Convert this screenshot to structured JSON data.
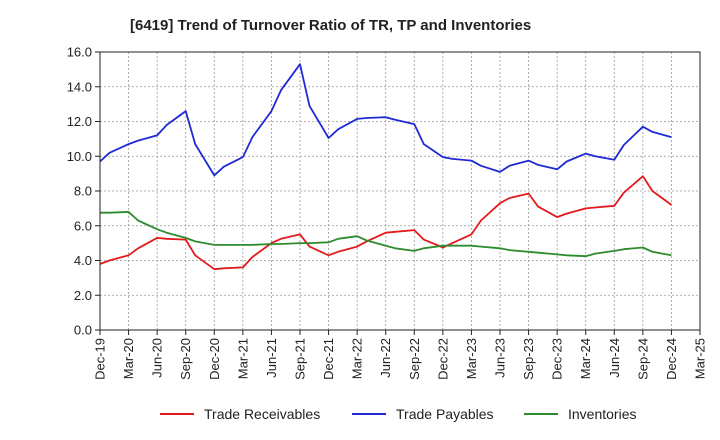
{
  "chart_data": {
    "type": "line",
    "title": "[6419]  Trend of Turnover Ratio of TR, TP and Inventories",
    "xlabel": "",
    "ylabel": "",
    "ylim": [
      0,
      16
    ],
    "y_ticks": [
      "0.0",
      "2.0",
      "4.0",
      "6.0",
      "8.0",
      "10.0",
      "12.0",
      "14.0",
      "16.0"
    ],
    "x_ticks": [
      "Dec-19",
      "Mar-20",
      "Jun-20",
      "Sep-20",
      "Dec-20",
      "Mar-21",
      "Jun-21",
      "Sep-21",
      "Dec-21",
      "Mar-22",
      "Jun-22",
      "Sep-22",
      "Dec-22",
      "Mar-23",
      "Jun-23",
      "Sep-23",
      "Dec-23",
      "Mar-24",
      "Jun-24",
      "Sep-24",
      "Dec-24",
      "Mar-25"
    ],
    "x": [
      "Dec-19",
      "Jan-20",
      "Mar-20",
      "Apr-20",
      "Jun-20",
      "Jul-20",
      "Sep-20",
      "Oct-20",
      "Dec-20",
      "Jan-21",
      "Mar-21",
      "Apr-21",
      "Jun-21",
      "Jul-21",
      "Sep-21",
      "Oct-21",
      "Dec-21",
      "Jan-22",
      "Mar-22",
      "Apr-22",
      "Jun-22",
      "Jul-22",
      "Sep-22",
      "Oct-22",
      "Dec-22",
      "Jan-23",
      "Mar-23",
      "Apr-23",
      "Jun-23",
      "Jul-23",
      "Sep-23",
      "Oct-23",
      "Dec-23",
      "Jan-24",
      "Mar-24",
      "Apr-24",
      "Jun-24",
      "Jul-24",
      "Sep-24",
      "Oct-24",
      "Dec-24"
    ],
    "grid": true,
    "legend_position": "bottom",
    "series": [
      {
        "name": "Trade Receivables",
        "color": "#e31a1c",
        "values": [
          3.8,
          4.0,
          4.3,
          4.7,
          5.3,
          5.25,
          5.2,
          4.3,
          3.5,
          3.55,
          3.6,
          4.2,
          5.0,
          5.25,
          5.5,
          4.8,
          4.3,
          4.5,
          4.8,
          5.1,
          5.6,
          5.65,
          5.75,
          5.2,
          4.75,
          5.0,
          5.5,
          6.3,
          7.3,
          7.6,
          7.85,
          7.1,
          6.5,
          6.7,
          7.0,
          7.05,
          7.15,
          7.9,
          8.85,
          8.0,
          7.2
        ]
      },
      {
        "name": "Trade Payables",
        "color": "#1f2ad4",
        "values": [
          9.7,
          10.2,
          10.7,
          10.9,
          11.2,
          11.8,
          12.6,
          10.7,
          8.9,
          9.4,
          9.95,
          11.1,
          12.6,
          13.8,
          15.3,
          12.9,
          11.05,
          11.55,
          12.15,
          12.2,
          12.25,
          12.1,
          11.85,
          10.7,
          9.95,
          9.85,
          9.75,
          9.45,
          9.1,
          9.45,
          9.75,
          9.5,
          9.25,
          9.7,
          10.15,
          10.0,
          9.8,
          10.65,
          11.7,
          11.4,
          11.1
        ]
      },
      {
        "name": "Inventories",
        "color": "#2e8b2e",
        "values": [
          6.75,
          6.75,
          6.8,
          6.3,
          5.8,
          5.6,
          5.3,
          5.1,
          4.9,
          4.9,
          4.9,
          4.9,
          4.95,
          4.95,
          5.0,
          5.0,
          5.05,
          5.25,
          5.4,
          5.15,
          4.85,
          4.7,
          4.55,
          4.7,
          4.85,
          4.85,
          4.85,
          4.8,
          4.7,
          4.6,
          4.5,
          4.45,
          4.35,
          4.3,
          4.25,
          4.4,
          4.55,
          4.65,
          4.75,
          4.5,
          4.3
        ]
      }
    ]
  }
}
